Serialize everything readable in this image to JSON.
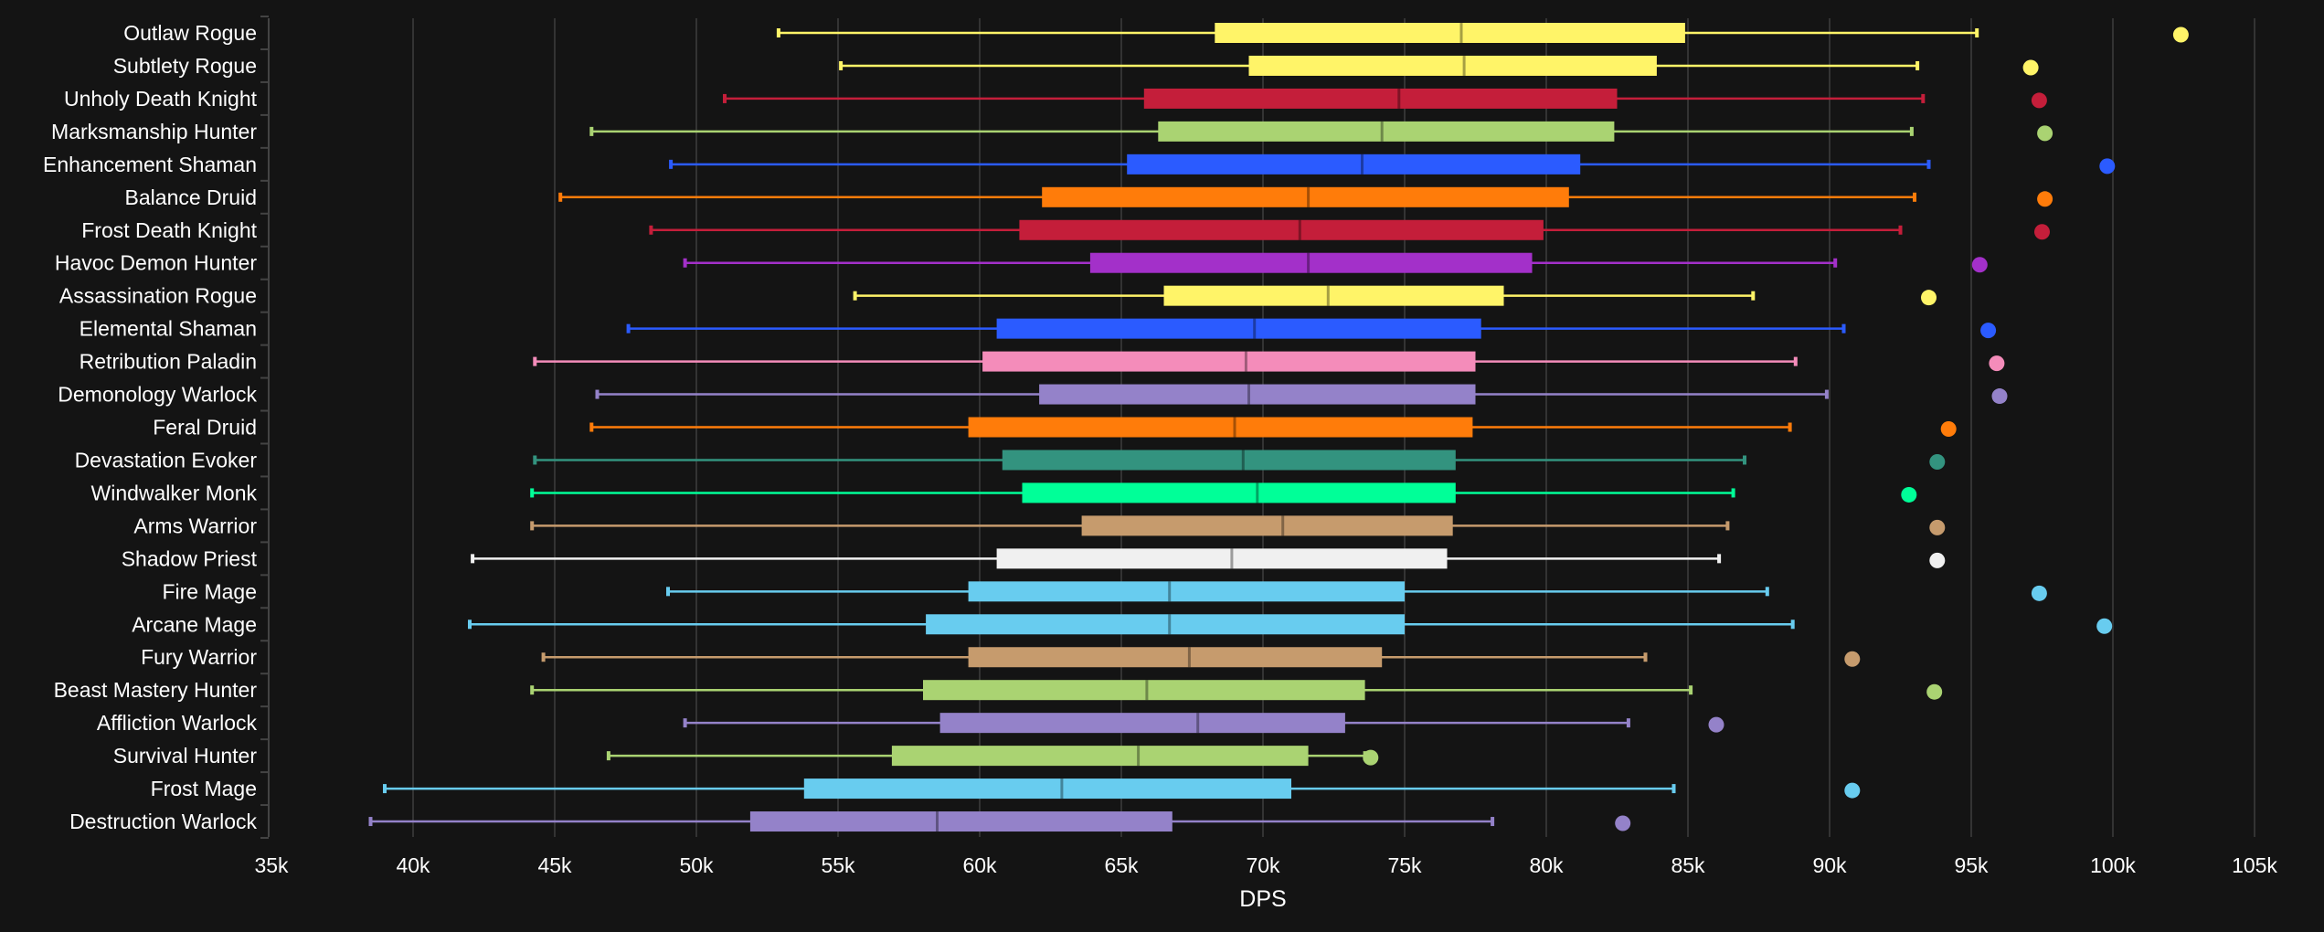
{
  "chart_data": {
    "type": "boxplot",
    "title": "",
    "xlabel": "DPS",
    "ylabel": "",
    "xlim": [
      35000,
      105000
    ],
    "x_ticks": [
      35000,
      40000,
      45000,
      50000,
      55000,
      60000,
      65000,
      70000,
      75000,
      80000,
      85000,
      90000,
      95000,
      100000,
      105000
    ],
    "x_tick_labels": [
      "35k",
      "40k",
      "45k",
      "50k",
      "55k",
      "60k",
      "65k",
      "70k",
      "75k",
      "80k",
      "85k",
      "90k",
      "95k",
      "100k",
      "105k"
    ],
    "grid": true,
    "series": [
      {
        "name": "Outlaw Rogue",
        "color": "#FFF468",
        "min": 52900,
        "q1": 68300,
        "median": 77000,
        "q3": 84900,
        "max": 95200,
        "top": 102400
      },
      {
        "name": "Subtlety Rogue",
        "color": "#FFF468",
        "min": 55100,
        "q1": 69500,
        "median": 77100,
        "q3": 83900,
        "max": 93100,
        "top": 97100
      },
      {
        "name": "Unholy Death Knight",
        "color": "#C41E3A",
        "min": 51000,
        "q1": 65800,
        "median": 74800,
        "q3": 82500,
        "max": 93300,
        "top": 97400
      },
      {
        "name": "Marksmanship Hunter",
        "color": "#AAD372",
        "min": 46300,
        "q1": 66300,
        "median": 74200,
        "q3": 82400,
        "max": 92900,
        "top": 97600
      },
      {
        "name": "Enhancement Shaman",
        "color": "#2B5BFF",
        "min": 49100,
        "q1": 65200,
        "median": 73500,
        "q3": 81200,
        "max": 93500,
        "top": 99800
      },
      {
        "name": "Balance Druid",
        "color": "#FF7C0A",
        "min": 45200,
        "q1": 62200,
        "median": 71600,
        "q3": 80800,
        "max": 93000,
        "top": 97600
      },
      {
        "name": "Frost Death Knight",
        "color": "#C41E3A",
        "min": 48400,
        "q1": 61400,
        "median": 71300,
        "q3": 79900,
        "max": 92500,
        "top": 97500
      },
      {
        "name": "Havoc Demon Hunter",
        "color": "#A330C9",
        "min": 49600,
        "q1": 63900,
        "median": 71600,
        "q3": 79500,
        "max": 90200,
        "top": 95300
      },
      {
        "name": "Assassination Rogue",
        "color": "#FFF468",
        "min": 55600,
        "q1": 66500,
        "median": 72300,
        "q3": 78500,
        "max": 87300,
        "top": 93500
      },
      {
        "name": "Elemental Shaman",
        "color": "#2B5BFF",
        "min": 47600,
        "q1": 60600,
        "median": 69700,
        "q3": 77700,
        "max": 90500,
        "top": 95600
      },
      {
        "name": "Retribution Paladin",
        "color": "#F48CBA",
        "min": 44300,
        "q1": 60100,
        "median": 69400,
        "q3": 77500,
        "max": 88800,
        "top": 95900
      },
      {
        "name": "Demonology Warlock",
        "color": "#9482C9",
        "min": 46500,
        "q1": 62100,
        "median": 69500,
        "q3": 77500,
        "max": 89900,
        "top": 96000
      },
      {
        "name": "Feral Druid",
        "color": "#FF7C0A",
        "min": 46300,
        "q1": 59600,
        "median": 69000,
        "q3": 77400,
        "max": 88600,
        "top": 94200
      },
      {
        "name": "Devastation Evoker",
        "color": "#33937F",
        "min": 44300,
        "q1": 60800,
        "median": 69300,
        "q3": 76800,
        "max": 87000,
        "top": 93800
      },
      {
        "name": "Windwalker Monk",
        "color": "#00FF98",
        "min": 44200,
        "q1": 61500,
        "median": 69800,
        "q3": 76800,
        "max": 86600,
        "top": 92800
      },
      {
        "name": "Arms Warrior",
        "color": "#C69B6D",
        "min": 44200,
        "q1": 63600,
        "median": 70700,
        "q3": 76700,
        "max": 86400,
        "top": 93800
      },
      {
        "name": "Shadow Priest",
        "color": "#F0F0F0",
        "min": 42100,
        "q1": 60600,
        "median": 68900,
        "q3": 76500,
        "max": 86100,
        "top": 93800
      },
      {
        "name": "Fire Mage",
        "color": "#68CCEF",
        "min": 49000,
        "q1": 59600,
        "median": 66700,
        "q3": 75000,
        "max": 87800,
        "top": 97400
      },
      {
        "name": "Arcane Mage",
        "color": "#68CCEF",
        "min": 42000,
        "q1": 58100,
        "median": 66700,
        "q3": 75000,
        "max": 88700,
        "top": 99700
      },
      {
        "name": "Fury Warrior",
        "color": "#C69B6D",
        "min": 44600,
        "q1": 59600,
        "median": 67400,
        "q3": 74200,
        "max": 83500,
        "top": 90800
      },
      {
        "name": "Beast Mastery Hunter",
        "color": "#AAD372",
        "min": 44200,
        "q1": 58000,
        "median": 65900,
        "q3": 73600,
        "max": 85100,
        "top": 93700
      },
      {
        "name": "Affliction Warlock",
        "color": "#9482C9",
        "min": 49600,
        "q1": 58600,
        "median": 67700,
        "q3": 72900,
        "max": 82900,
        "top": 86000
      },
      {
        "name": "Survival Hunter",
        "color": "#AAD372",
        "min": 46900,
        "q1": 56900,
        "median": 65600,
        "q3": 71600,
        "max": 73600,
        "top": 73800
      },
      {
        "name": "Frost Mage",
        "color": "#68CCEF",
        "min": 39000,
        "q1": 53800,
        "median": 62900,
        "q3": 71000,
        "max": 84500,
        "top": 90800
      },
      {
        "name": "Destruction Warlock",
        "color": "#9482C9",
        "min": 38500,
        "q1": 51900,
        "median": 58500,
        "q3": 66800,
        "max": 78100,
        "top": 82700
      }
    ]
  }
}
